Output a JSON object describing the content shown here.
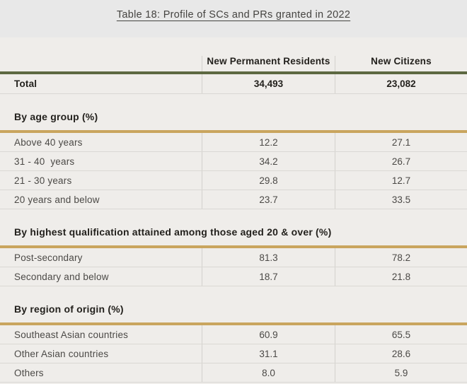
{
  "title": "Table 18: Profile of SCs and PRs granted in 2022",
  "columns": [
    "New Permanent Residents",
    "New Citizens"
  ],
  "total": {
    "label": "Total",
    "values": [
      "34,493",
      "23,082"
    ]
  },
  "sections": [
    {
      "heading": "By age group (%)",
      "rows": [
        {
          "label": "Above 40 years",
          "values": [
            "12.2",
            "27.1"
          ]
        },
        {
          "label": "31 - 40  years",
          "values": [
            "34.2",
            "26.7"
          ]
        },
        {
          "label": "21 - 30 years",
          "values": [
            "29.8",
            "12.7"
          ]
        },
        {
          "label": "20 years and below",
          "values": [
            "23.7",
            "33.5"
          ]
        }
      ]
    },
    {
      "heading": "By highest qualification attained among those aged 20 & over (%)",
      "rows": [
        {
          "label": "Post-secondary",
          "values": [
            "81.3",
            "78.2"
          ]
        },
        {
          "label": "Secondary and below",
          "values": [
            "18.7",
            "21.8"
          ]
        }
      ]
    },
    {
      "heading": "By region of origin (%)",
      "rows": [
        {
          "label": "Southeast Asian countries",
          "values": [
            "60.9",
            "65.5"
          ]
        },
        {
          "label": "Other Asian countries",
          "values": [
            "31.1",
            "28.6"
          ]
        },
        {
          "label": "Others",
          "values": [
            "8.0",
            "5.9"
          ]
        }
      ]
    }
  ],
  "colors": {
    "page_bg": "#e8e8e8",
    "panel_bg": "#efedea",
    "header_rule_olive": "#5d6942",
    "section_rule_gold": "#c9a55e",
    "text_dark": "#23211d",
    "text_body": "#4b4946"
  },
  "chart_data": {
    "type": "table",
    "title": "Table 18: Profile of SCs and PRs granted in 2022",
    "columns": [
      "",
      "New Permanent Residents",
      "New Citizens"
    ],
    "rows": [
      [
        "Total",
        "34,493",
        "23,082"
      ],
      [
        "By age group (%)",
        "",
        ""
      ],
      [
        "Above 40 years",
        "12.2",
        "27.1"
      ],
      [
        "31 - 40  years",
        "34.2",
        "26.7"
      ],
      [
        "21 - 30 years",
        "29.8",
        "12.7"
      ],
      [
        "20 years and below",
        "23.7",
        "33.5"
      ],
      [
        "By highest qualification attained among those aged 20 & over (%)",
        "",
        ""
      ],
      [
        "Post-secondary",
        "81.3",
        "78.2"
      ],
      [
        "Secondary and below",
        "18.7",
        "21.8"
      ],
      [
        "By region of origin (%)",
        "",
        ""
      ],
      [
        "Southeast Asian countries",
        "60.9",
        "65.5"
      ],
      [
        "Other Asian countries",
        "31.1",
        "28.6"
      ],
      [
        "Others",
        "8.0",
        "5.9"
      ]
    ]
  }
}
